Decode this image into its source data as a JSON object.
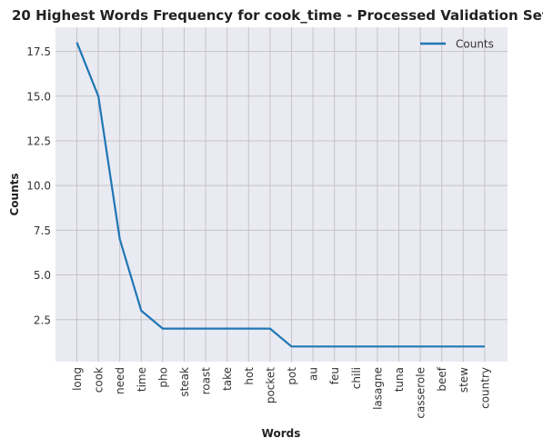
{
  "chart_data": {
    "type": "line",
    "title": "20 Highest Words Frequency for cook_time - Processed Validation Set",
    "xlabel": "Words",
    "ylabel": "Counts",
    "categories": [
      "long",
      "cook",
      "need",
      "time",
      "pho",
      "steak",
      "roast",
      "take",
      "hot",
      "pocket",
      "pot",
      "au",
      "feu",
      "chili",
      "lasagne",
      "tuna",
      "casserole",
      "beef",
      "stew",
      "country"
    ],
    "series": [
      {
        "name": "Counts",
        "values": [
          18,
          15,
          7,
          3,
          2,
          2,
          2,
          2,
          2,
          2,
          1,
          1,
          1,
          1,
          1,
          1,
          1,
          1,
          1,
          1
        ]
      }
    ],
    "yticks": [
      "2.5",
      "5.0",
      "7.5",
      "10.0",
      "12.5",
      "15.0",
      "17.5"
    ],
    "ytick_values": [
      2.5,
      5.0,
      7.5,
      10.0,
      12.5,
      15.0,
      17.5
    ],
    "ylim": [
      0.15,
      18.85
    ],
    "grid": true,
    "legend": "top-right",
    "colors": {
      "line": "#1f77b4",
      "plot_bg": "#eaeaf2",
      "grid": "#c4c4c8"
    }
  }
}
